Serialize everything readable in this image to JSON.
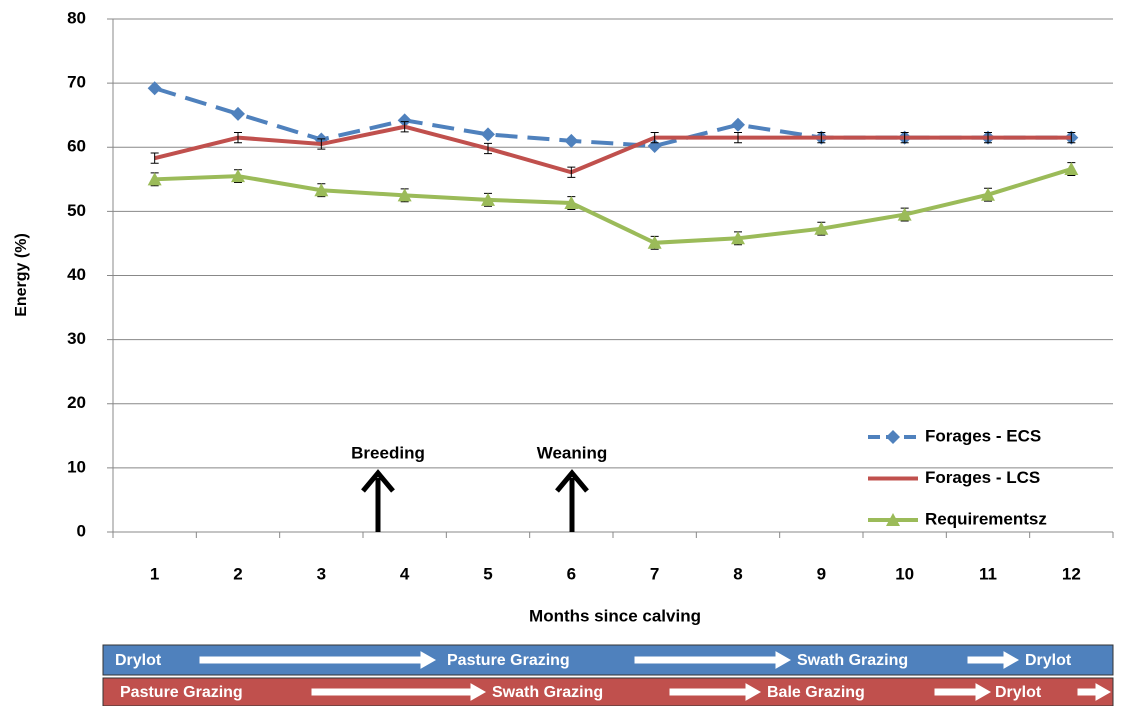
{
  "chart_data": {
    "type": "line",
    "x_label": "Months since calving",
    "y_label": "Energy (%)",
    "categories": [
      "1",
      "2",
      "3",
      "4",
      "5",
      "6",
      "7",
      "8",
      "9",
      "10",
      "11",
      "12"
    ],
    "series": [
      {
        "name": "Forages - ECS",
        "color": "#4f81bd",
        "dash": true,
        "marker": "diamond",
        "values": [
          69.2,
          65.2,
          61.2,
          64.2,
          62,
          61,
          60.2,
          63.5,
          61.5,
          61.5,
          61.5,
          61.5
        ]
      },
      {
        "name": "Forages - LCS",
        "color": "#c0504d",
        "dash": false,
        "marker": "none",
        "values": [
          58.3,
          61.5,
          60.5,
          63.2,
          59.8,
          56.1,
          61.5,
          61.5,
          61.5,
          61.5,
          61.5,
          61.5
        ],
        "errors": [
          0.8,
          0.8,
          0.8,
          0.8,
          0.8,
          0.8,
          0.8,
          0.8,
          0.8,
          0.8,
          0.8,
          0.8
        ]
      },
      {
        "name": "Requirementsz",
        "color": "#9bbb59",
        "dash": false,
        "marker": "triangle",
        "values": [
          55,
          55.5,
          53.3,
          52.5,
          51.8,
          51.3,
          45.1,
          45.8,
          47.3,
          49.5,
          52.6,
          56.6
        ],
        "errors": [
          1,
          1,
          1,
          1,
          1,
          1,
          1,
          1,
          1,
          1,
          1,
          1
        ]
      }
    ],
    "ylim": [
      0,
      80
    ],
    "yticks": [
      0,
      10,
      20,
      30,
      40,
      50,
      60,
      70,
      80
    ],
    "grid": true,
    "legend": "lower right",
    "annotations": [
      "Breeding",
      "Weaning"
    ],
    "timelines": [
      {
        "color": "#4f81bd",
        "stages": [
          "Drylot",
          "Pasture Grazing",
          "Swath Grazing",
          "Drylot"
        ]
      },
      {
        "color": "#c0504d",
        "stages": [
          "Pasture Grazing",
          "Swath Grazing",
          "Bale Grazing",
          "Drylot"
        ]
      }
    ]
  }
}
